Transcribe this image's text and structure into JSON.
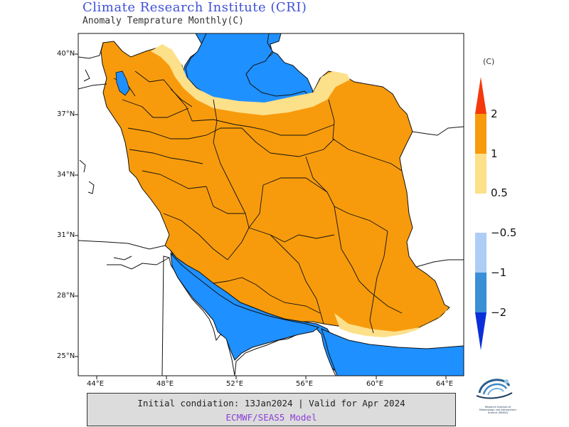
{
  "header": {
    "title": "Climate Research Institute (CRI)",
    "subtitle": "Anomaly Temprature Monthly(C)"
  },
  "map": {
    "lat_labels": [
      "40°N",
      "37°N",
      "34°N",
      "31°N",
      "28°N",
      "25°N"
    ],
    "lon_labels": [
      "44°E",
      "48°E",
      "52°E",
      "56°E",
      "60°E",
      "64°E"
    ],
    "colors": {
      "sea": "#1e90ff",
      "land_background": "#ffffff",
      "anomaly_1_2": "#f79b0c",
      "anomaly_0_5_1": "#fde08a",
      "borders": "#111111"
    }
  },
  "legend": {
    "unit": "(C)",
    "positive": [
      {
        "label": "2",
        "color": "#f5390c"
      },
      {
        "label": "1",
        "color": "#f79b0c"
      },
      {
        "label": "0.5",
        "color": "#fde08a"
      }
    ],
    "negative": [
      {
        "label": "−0.5",
        "color": "#aecdf6"
      },
      {
        "label": "−1",
        "color": "#3b8fd6"
      },
      {
        "label": "−2",
        "color": "#0a2fd9"
      }
    ]
  },
  "footer": {
    "initial_condition": "Initial condiation: 13Jan2024 | Valid for Apr 2024",
    "model": "ECMWF/SEAS5 Model"
  },
  "logo": {
    "name": "cri-logo-icon",
    "caption": "Research Institute of Meteorology and Atmospheric Science (RIMAS)"
  }
}
